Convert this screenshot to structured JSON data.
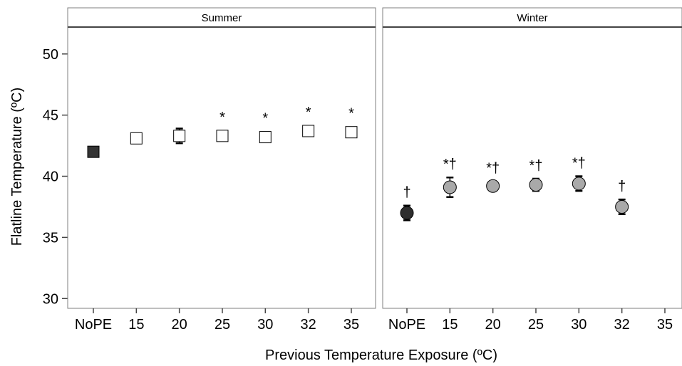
{
  "chart_data": {
    "type": "scatter",
    "xlabel": "Previous Temperature Exposure (ºC)",
    "ylabel": "Flatline Temperature (ºC)",
    "ylim": [
      29.2,
      52.2
    ],
    "yticks": [
      30,
      35,
      40,
      45,
      50
    ],
    "categories": [
      "NoPE",
      "15",
      "20",
      "25",
      "30",
      "32",
      "35"
    ],
    "grid": false,
    "panels": [
      {
        "title": "Summer",
        "points": [
          {
            "x": "NoPE",
            "y": 42.0,
            "lower": 42.0,
            "upper": 42.0,
            "marker": "square",
            "fill": "#333333",
            "annotation": ""
          },
          {
            "x": "15",
            "y": 43.1,
            "lower": 43.1,
            "upper": 43.1,
            "marker": "square",
            "fill": "#ffffff",
            "annotation": ""
          },
          {
            "x": "20",
            "y": 43.3,
            "lower": 42.7,
            "upper": 43.9,
            "marker": "square",
            "fill": "#ffffff",
            "annotation": ""
          },
          {
            "x": "25",
            "y": 43.3,
            "lower": 43.3,
            "upper": 43.3,
            "marker": "square",
            "fill": "#ffffff",
            "annotation": "*"
          },
          {
            "x": "30",
            "y": 43.2,
            "lower": 43.2,
            "upper": 43.2,
            "marker": "square",
            "fill": "#ffffff",
            "annotation": "*"
          },
          {
            "x": "32",
            "y": 43.7,
            "lower": 43.7,
            "upper": 43.7,
            "marker": "square",
            "fill": "#ffffff",
            "annotation": "*"
          },
          {
            "x": "35",
            "y": 43.6,
            "lower": 43.6,
            "upper": 43.6,
            "marker": "square",
            "fill": "#ffffff",
            "annotation": "*"
          }
        ]
      },
      {
        "title": "Winter",
        "points": [
          {
            "x": "NoPE",
            "y": 37.0,
            "lower": 36.4,
            "upper": 37.6,
            "marker": "circle",
            "fill": "#2e2e2e",
            "annotation": "†"
          },
          {
            "x": "15",
            "y": 39.1,
            "lower": 38.3,
            "upper": 39.9,
            "marker": "circle",
            "fill": "#a9a9a9",
            "annotation": "*†"
          },
          {
            "x": "20",
            "y": 39.2,
            "lower": 38.8,
            "upper": 39.6,
            "marker": "circle",
            "fill": "#a9a9a9",
            "annotation": "*†"
          },
          {
            "x": "25",
            "y": 39.3,
            "lower": 38.8,
            "upper": 39.8,
            "marker": "circle",
            "fill": "#a9a9a9",
            "annotation": "*†"
          },
          {
            "x": "30",
            "y": 39.4,
            "lower": 38.8,
            "upper": 40.0,
            "marker": "circle",
            "fill": "#a9a9a9",
            "annotation": "*†"
          },
          {
            "x": "32",
            "y": 37.5,
            "lower": 36.9,
            "upper": 38.1,
            "marker": "circle",
            "fill": "#a9a9a9",
            "annotation": "†"
          }
        ]
      }
    ]
  }
}
